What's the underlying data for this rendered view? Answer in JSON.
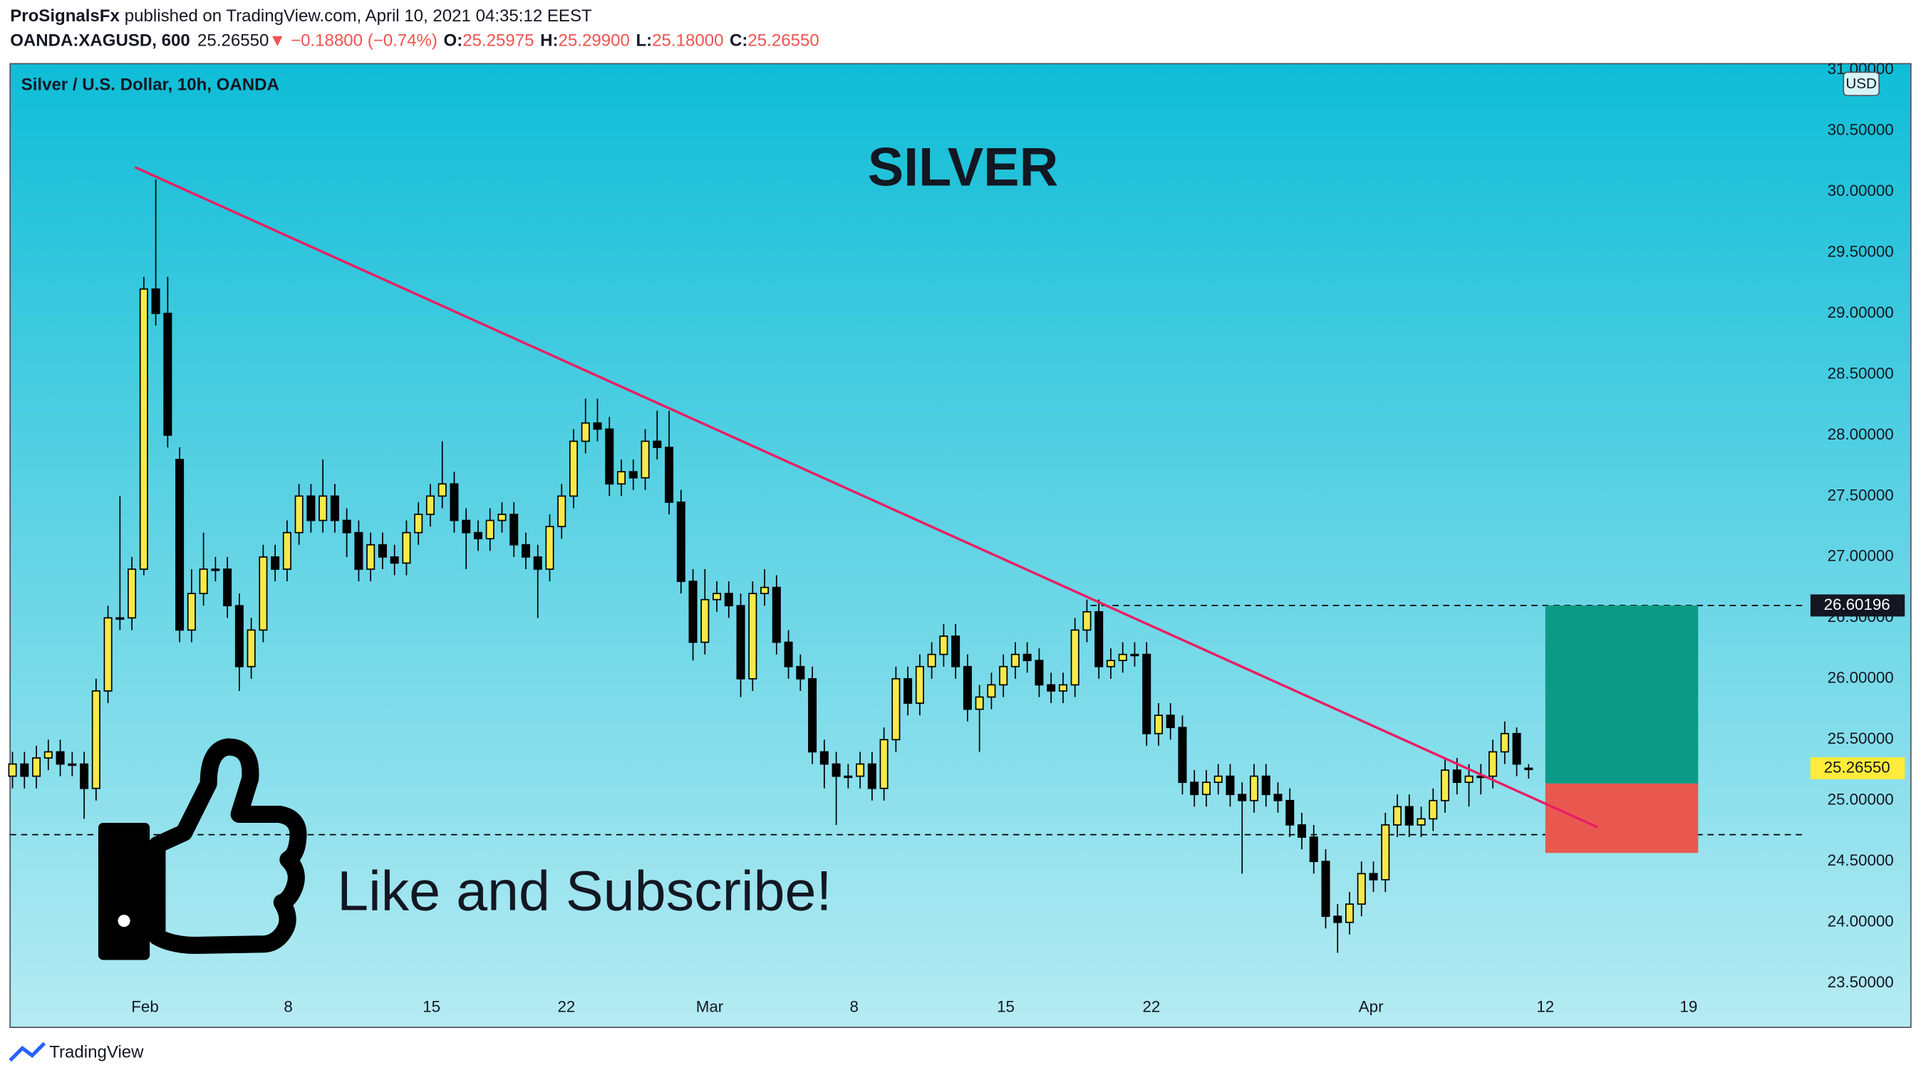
{
  "header": {
    "author": "ProSignalsFx",
    "published": "published on TradingView.com, April 10, 2021 04:35:12 EEST",
    "symbol": "OANDA:XAGUSD, 600",
    "last": "25.26550",
    "arrow": "▼",
    "change": "−0.18800 (−0.74%)",
    "ohlc": [
      {
        "label": "O:",
        "value": "25.25975"
      },
      {
        "label": "H:",
        "value": "25.29900"
      },
      {
        "label": "L:",
        "value": "25.18000"
      },
      {
        "label": "C:",
        "value": "25.26550"
      }
    ]
  },
  "footer": {
    "brand": "TradingView"
  },
  "chart_data": {
    "type": "candlestick",
    "legend": "Silver / U.S. Dollar, 10h, OANDA",
    "title": "SILVER",
    "annotation": "Like and Subscribe!",
    "currency": "USD",
    "grid": false,
    "xlim": [
      -0.2,
      150.3
    ],
    "ylim": [
      23.5,
      31.0
    ],
    "xticks": [
      {
        "value": 11.1,
        "label": "Feb"
      },
      {
        "value": 23.1,
        "label": "8"
      },
      {
        "value": 35.1,
        "label": "15"
      },
      {
        "value": 46.4,
        "label": "22"
      },
      {
        "value": 58.4,
        "label": "Mar"
      },
      {
        "value": 70.5,
        "label": "8"
      },
      {
        "value": 83.2,
        "label": "15"
      },
      {
        "value": 95.4,
        "label": "22"
      },
      {
        "value": 113.8,
        "label": "Apr"
      },
      {
        "value": 128.4,
        "label": "12"
      },
      {
        "value": 140.4,
        "label": "19"
      }
    ],
    "yticks": [
      {
        "value": 23.5,
        "label": "23.50000"
      },
      {
        "value": 24,
        "label": "24.00000"
      },
      {
        "value": 24.5,
        "label": "24.50000"
      },
      {
        "value": 25,
        "label": "25.00000"
      },
      {
        "value": 25.5,
        "label": "25.50000"
      },
      {
        "value": 26,
        "label": "26.00000"
      },
      {
        "value": 26.5,
        "label": "26.50000"
      },
      {
        "value": 27,
        "label": "27.00000"
      },
      {
        "value": 27.5,
        "label": "27.50000"
      },
      {
        "value": 28,
        "label": "28.00000"
      },
      {
        "value": 28.5,
        "label": "28.50000"
      },
      {
        "value": 29,
        "label": "29.00000"
      },
      {
        "value": 29.5,
        "label": "29.50000"
      },
      {
        "value": 30,
        "label": "30.00000"
      },
      {
        "value": 30.5,
        "label": "30.50000"
      },
      {
        "value": 31,
        "label": "31.00000"
      }
    ],
    "candles": {
      "up_color": "#f7e94a",
      "down_color": "#000000",
      "open": [
        25.2,
        25.3,
        25.2,
        25.35,
        25.4,
        25.3,
        25.3,
        25.1,
        25.9,
        26.5,
        26.5,
        26.9,
        29.2,
        29.0,
        27.8,
        26.4,
        26.7,
        26.9,
        26.9,
        26.6,
        26.1,
        26.4,
        27.0,
        26.9,
        27.2,
        27.5,
        27.3,
        27.5,
        27.3,
        27.2,
        26.9,
        27.1,
        27.0,
        26.95,
        27.2,
        27.35,
        27.5,
        27.6,
        27.3,
        27.2,
        27.15,
        27.3,
        27.35,
        27.1,
        27.0,
        26.9,
        27.25,
        27.5,
        27.95,
        28.1,
        28.05,
        27.6,
        27.7,
        27.65,
        27.95,
        27.9,
        27.45,
        26.8,
        26.3,
        26.65,
        26.7,
        26.6,
        26.0,
        26.7,
        26.75,
        26.3,
        26.1,
        26.0,
        25.4,
        25.3,
        25.2,
        25.2,
        25.3,
        25.1,
        25.5,
        26.0,
        25.8,
        26.1,
        26.2,
        26.35,
        26.1,
        25.75,
        25.85,
        25.95,
        26.1,
        26.2,
        26.15,
        25.95,
        25.9,
        25.95,
        26.4,
        26.55,
        26.1,
        26.15,
        26.2,
        26.2,
        25.55,
        25.7,
        25.6,
        25.15,
        25.05,
        25.15,
        25.2,
        25.05,
        25.0,
        25.2,
        25.05,
        25.0,
        24.8,
        24.7,
        24.5,
        24.05,
        24.0,
        24.15,
        24.4,
        24.35,
        24.8,
        24.95,
        24.8,
        24.85,
        25.0,
        25.25,
        25.15,
        25.2,
        25.2,
        25.4,
        25.55,
        25.25975
      ],
      "high": [
        25.4,
        25.4,
        25.45,
        25.5,
        25.5,
        25.4,
        25.4,
        26.0,
        26.6,
        27.5,
        27.0,
        29.3,
        30.1,
        29.3,
        27.9,
        26.9,
        27.2,
        27.0,
        27.0,
        26.7,
        26.5,
        27.1,
        27.1,
        27.3,
        27.6,
        27.6,
        27.8,
        27.6,
        27.4,
        27.3,
        27.2,
        27.2,
        27.1,
        27.3,
        27.45,
        27.6,
        27.95,
        27.7,
        27.4,
        27.3,
        27.4,
        27.45,
        27.45,
        27.2,
        27.1,
        27.35,
        27.6,
        28.05,
        28.3,
        28.3,
        28.15,
        27.8,
        27.8,
        28.05,
        28.2,
        28.2,
        27.55,
        26.9,
        26.9,
        26.8,
        26.8,
        26.7,
        26.8,
        26.9,
        26.85,
        26.4,
        26.2,
        26.1,
        25.5,
        25.4,
        25.3,
        25.4,
        25.4,
        25.6,
        26.1,
        26.1,
        26.2,
        26.3,
        26.45,
        26.45,
        26.2,
        25.95,
        26.05,
        26.2,
        26.3,
        26.3,
        26.25,
        26.05,
        26.05,
        26.5,
        26.65,
        26.65,
        26.25,
        26.3,
        26.3,
        26.3,
        25.8,
        25.8,
        25.7,
        25.25,
        25.25,
        25.3,
        25.3,
        25.15,
        25.3,
        25.3,
        25.15,
        25.1,
        24.9,
        24.8,
        24.6,
        24.15,
        24.25,
        24.5,
        24.5,
        24.9,
        25.05,
        25.05,
        24.95,
        25.1,
        25.35,
        25.35,
        25.3,
        25.3,
        25.5,
        25.65,
        25.6,
        25.299
      ],
      "low": [
        25.1,
        25.1,
        25.1,
        25.25,
        25.2,
        25.2,
        24.85,
        25.0,
        25.8,
        26.4,
        26.4,
        26.85,
        28.9,
        27.9,
        26.3,
        26.3,
        26.6,
        26.8,
        26.5,
        25.9,
        26.0,
        26.3,
        26.8,
        26.8,
        27.1,
        27.2,
        27.2,
        27.2,
        27.0,
        26.8,
        26.8,
        26.9,
        26.85,
        26.85,
        27.1,
        27.25,
        27.4,
        27.2,
        26.9,
        27.05,
        27.05,
        27.2,
        27.0,
        26.9,
        26.5,
        26.8,
        27.15,
        27.4,
        27.85,
        27.95,
        27.5,
        27.5,
        27.55,
        27.55,
        27.8,
        27.35,
        26.7,
        26.15,
        26.2,
        26.55,
        26.5,
        25.85,
        25.9,
        26.6,
        26.2,
        26.0,
        25.9,
        25.3,
        25.1,
        24.8,
        25.1,
        25.1,
        25.0,
        25.0,
        25.4,
        25.7,
        25.7,
        26.0,
        26.1,
        26.0,
        25.65,
        25.4,
        25.75,
        25.85,
        26.0,
        26.05,
        25.85,
        25.8,
        25.8,
        25.85,
        26.3,
        26.0,
        26.0,
        26.05,
        26.1,
        25.45,
        25.45,
        25.5,
        25.05,
        24.95,
        24.95,
        25.05,
        24.95,
        24.4,
        24.9,
        24.95,
        24.9,
        24.7,
        24.6,
        24.4,
        23.95,
        23.75,
        23.9,
        24.05,
        24.25,
        24.25,
        24.7,
        24.7,
        24.7,
        24.75,
        24.9,
        25.05,
        24.95,
        25.05,
        25.1,
        25.3,
        25.2,
        25.18
      ],
      "close": [
        25.3,
        25.2,
        25.35,
        25.4,
        25.3,
        25.3,
        25.1,
        25.9,
        26.5,
        26.5,
        26.9,
        29.2,
        29.0,
        28.0,
        26.4,
        26.7,
        26.9,
        26.9,
        26.6,
        26.1,
        26.4,
        27.0,
        26.9,
        27.2,
        27.5,
        27.3,
        27.5,
        27.3,
        27.2,
        26.9,
        27.1,
        27.0,
        26.95,
        27.2,
        27.35,
        27.5,
        27.6,
        27.3,
        27.2,
        27.15,
        27.3,
        27.35,
        27.1,
        27.0,
        26.9,
        27.25,
        27.5,
        27.95,
        28.1,
        28.05,
        27.6,
        27.7,
        27.65,
        27.95,
        27.9,
        27.45,
        26.8,
        26.3,
        26.65,
        26.7,
        26.6,
        26.0,
        26.7,
        26.75,
        26.3,
        26.1,
        26.0,
        25.4,
        25.3,
        25.2,
        25.2,
        25.3,
        25.1,
        25.5,
        26.0,
        25.8,
        26.1,
        26.2,
        26.35,
        26.1,
        25.75,
        25.85,
        25.95,
        26.1,
        26.2,
        26.15,
        25.95,
        25.9,
        25.95,
        26.4,
        26.55,
        26.1,
        26.15,
        26.2,
        26.2,
        25.55,
        25.7,
        25.6,
        25.15,
        25.05,
        25.15,
        25.2,
        25.05,
        25.0,
        25.2,
        25.05,
        25.0,
        24.8,
        24.7,
        24.5,
        24.05,
        24.0,
        24.15,
        24.4,
        24.35,
        24.8,
        24.95,
        24.8,
        24.85,
        25.0,
        25.25,
        25.15,
        25.2,
        25.2,
        25.4,
        25.55,
        25.3,
        25.2655
      ]
    },
    "trendline": {
      "x": [
        10.26,
        132.8
      ],
      "y": [
        30.2,
        24.78
      ],
      "color": "#e91e63"
    },
    "hlines": [
      {
        "value": 26.60196,
        "start": 90.3
      },
      {
        "value": 24.72,
        "start": -0.2
      }
    ],
    "position": {
      "target": 26.60196,
      "entry": 25.14,
      "stop": 24.57,
      "start": 128.4,
      "end": 141.2,
      "profit_color": "#0c9a86",
      "loss_color": "#e9584f"
    },
    "price_labels": [
      {
        "value": 26.60196,
        "label": "26.60196",
        "color": "#131722",
        "text_color": "#ffffff"
      },
      {
        "value": 25.2655,
        "label": "25.26550",
        "color": "#ffeb3b",
        "text_color": "#131722"
      }
    ]
  }
}
